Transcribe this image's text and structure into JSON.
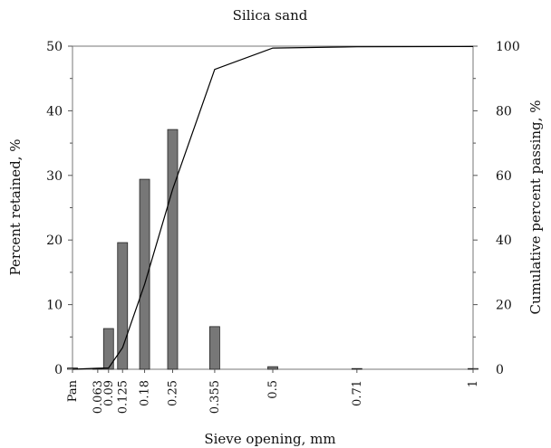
{
  "chart_data": {
    "type": "bar",
    "title": "Silica sand",
    "xlabel": "Sieve opening, mm",
    "ylabel": "Percent retained, %",
    "y2label": "Cumulative percent passing, %",
    "ylim": [
      0,
      50
    ],
    "y2lim": [
      0,
      100
    ],
    "yticks": [
      0,
      10,
      20,
      30,
      40,
      50
    ],
    "y2ticks": [
      0,
      20,
      40,
      60,
      80,
      100
    ],
    "xlim": [
      0,
      1
    ],
    "x": [
      0,
      0.063,
      0.09,
      0.125,
      0.18,
      0.25,
      0.355,
      0.5,
      0.71,
      1
    ],
    "tick_labels": [
      "Pan",
      "0.063",
      "0.09",
      "0.125",
      "0.18",
      "0.25",
      "0.355",
      "0.5",
      "0.71",
      "1"
    ],
    "grid": false,
    "series": [
      {
        "type": "bar",
        "axis": "left",
        "color": "#777777",
        "values": [
          0.2,
          0.1,
          6.3,
          19.6,
          29.4,
          37.1,
          6.6,
          0.4,
          0.1,
          0.1
        ]
      },
      {
        "type": "line",
        "axis": "right",
        "color": "#000000",
        "values": [
          0,
          0.3,
          0.4,
          6.7,
          26.3,
          55.7,
          92.8,
          99.4,
          99.8,
          99.9
        ]
      }
    ]
  }
}
